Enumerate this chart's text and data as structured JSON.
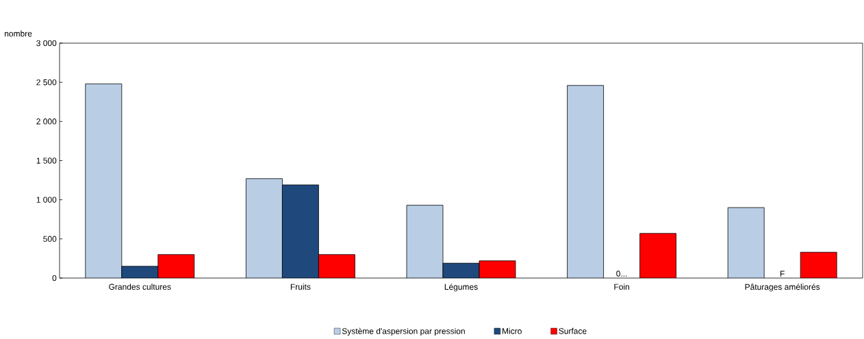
{
  "chart_data": {
    "type": "bar",
    "ylabel": "nombre",
    "categories": [
      "Grandes cultures",
      "Fruits",
      "Légumes",
      "Foin",
      "Pâturages améliorés"
    ],
    "series": [
      {
        "name": "Système d'aspersion par pression",
        "color": "#b9cde5",
        "values": [
          2480,
          1270,
          930,
          2460,
          900
        ]
      },
      {
        "name": "Micro",
        "color": "#1f497d",
        "values": [
          150,
          1190,
          190,
          null,
          null
        ]
      },
      {
        "name": "Surface",
        "color": "#ff0000",
        "values": [
          300,
          300,
          220,
          570,
          330
        ]
      }
    ],
    "ylim": [
      0,
      3000
    ],
    "yticks": [
      0,
      500,
      {
        "value": 1000,
        "label": "1 000"
      },
      {
        "value": 1500,
        "label": "1 500"
      },
      {
        "value": 2000,
        "label": "2 000"
      },
      {
        "value": 2500,
        "label": "2 500"
      },
      {
        "value": 3000,
        "label": "3 000"
      }
    ],
    "annotations": [
      "0...",
      "F"
    ],
    "grid": false,
    "legend": "bottom"
  }
}
